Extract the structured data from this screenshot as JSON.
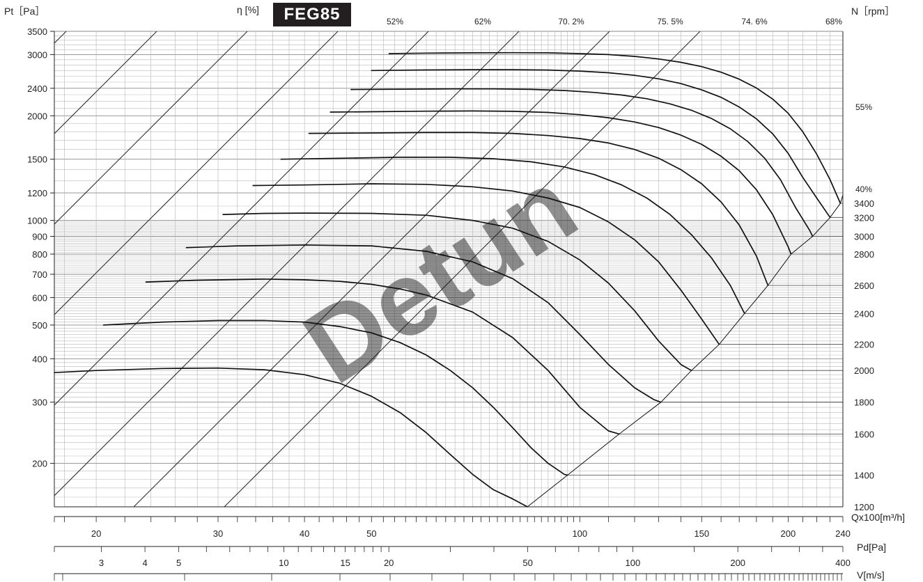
{
  "header": {
    "pt_label": "Pt［Pa］",
    "eta_label": "η [%]",
    "model": "FEG85",
    "n_label": "N［rpm］",
    "q_label": "Qx100[m³/h]",
    "pd_label": "Pd[Pa]",
    "v_label": "V[m/s]"
  },
  "watermark": "Detun",
  "chart_data": {
    "type": "line",
    "title": "FEG85",
    "xlabel": "Qx100[m³/h]",
    "ylabel": "Pt［Pa］",
    "x_scale": "log",
    "y_scale": "log",
    "xlim": [
      17.4,
      240
    ],
    "ylim": [
      150,
      3500
    ],
    "grid": true,
    "y_ticks": [
      200,
      300,
      400,
      500,
      600,
      700,
      800,
      900,
      1000,
      1200,
      1500,
      2000,
      2400,
      3000,
      3500
    ],
    "y_tick_labels": [
      "200",
      "300",
      "400",
      "500",
      "600",
      "700",
      "800",
      "900",
      "1000",
      "1200",
      "1500",
      "2000",
      "2400",
      "3000",
      "3500"
    ],
    "x_ticks": [
      20,
      30,
      40,
      50,
      100,
      150,
      200,
      240
    ],
    "x_tick_labels": [
      "20",
      "30",
      "40",
      "50",
      "100",
      "150",
      "200",
      "240"
    ],
    "pd_ticks": [
      3,
      4,
      5,
      10,
      15,
      20,
      50,
      100,
      200,
      400
    ],
    "pd_tick_labels": [
      "3",
      "4",
      "5",
      "10",
      "15",
      "20",
      "50",
      "100",
      "200",
      "400"
    ],
    "efficiency_labels": [
      "52%",
      "62%",
      "70. 2%",
      "75. 5%",
      "74. 6%",
      "68%",
      "55%",
      "40%"
    ],
    "rpm_ticks": [
      1200,
      1400,
      1600,
      1800,
      2000,
      2200,
      2400,
      2600,
      2800,
      3000,
      3200,
      3400
    ],
    "rpm_tick_labels": [
      "1200",
      "1400",
      "1600",
      "1800",
      "2000",
      "2200",
      "2400",
      "2600",
      "2800",
      "3000",
      "3200",
      "3400"
    ],
    "series": [
      {
        "name": "1200",
        "x": [
          17.4,
          20,
          25,
          30,
          35,
          40,
          45,
          50,
          55,
          60,
          65,
          70,
          75,
          80,
          84
        ],
        "y": [
          365,
          370,
          375,
          376,
          372,
          360,
          340,
          312,
          280,
          245,
          212,
          186,
          168,
          158,
          150
        ]
      },
      {
        "name": "1400",
        "x": [
          20.5,
          25,
          30,
          35,
          40,
          45,
          50,
          55,
          60,
          65,
          70,
          75,
          80,
          85,
          90,
          95,
          96
        ],
        "y": [
          500,
          510,
          515,
          515,
          510,
          495,
          475,
          445,
          410,
          370,
          330,
          290,
          253,
          222,
          200,
          186,
          185
        ]
      },
      {
        "name": "1600",
        "x": [
          23.6,
          28,
          35,
          40,
          45,
          50,
          55,
          60,
          70,
          80,
          90,
          100,
          110,
          114
        ],
        "y": [
          665,
          673,
          678,
          675,
          668,
          655,
          635,
          610,
          545,
          460,
          370,
          290,
          248,
          243
        ]
      },
      {
        "name": "1800",
        "x": [
          27,
          32,
          40,
          50,
          60,
          70,
          80,
          90,
          100,
          110,
          120,
          128,
          131
        ],
        "y": [
          835,
          845,
          850,
          845,
          815,
          760,
          680,
          580,
          470,
          385,
          330,
          305,
          300
        ]
      },
      {
        "name": "2000",
        "x": [
          30.5,
          35,
          40,
          50,
          60,
          70,
          80,
          90,
          100,
          110,
          120,
          130,
          140,
          145
        ],
        "y": [
          1040,
          1048,
          1050,
          1048,
          1035,
          1000,
          950,
          870,
          770,
          660,
          550,
          450,
          385,
          370
        ]
      },
      {
        "name": "2200",
        "x": [
          33.7,
          40,
          50,
          60,
          70,
          80,
          90,
          100,
          110,
          120,
          130,
          140,
          150,
          159
        ],
        "y": [
          1260,
          1265,
          1275,
          1270,
          1250,
          1215,
          1160,
          1090,
          990,
          880,
          760,
          630,
          520,
          440
        ]
      },
      {
        "name": "2400",
        "x": [
          37,
          45,
          55,
          65,
          75,
          85,
          95,
          105,
          115,
          125,
          135,
          145,
          155,
          165,
          173
        ],
        "y": [
          1500,
          1510,
          1520,
          1520,
          1505,
          1475,
          1425,
          1355,
          1265,
          1160,
          1040,
          910,
          780,
          650,
          540
        ]
      },
      {
        "name": "2600",
        "x": [
          40.6,
          50,
          60,
          70,
          80,
          90,
          100,
          110,
          120,
          130,
          140,
          150,
          160,
          170,
          180,
          187
        ],
        "y": [
          1780,
          1785,
          1790,
          1790,
          1780,
          1755,
          1720,
          1670,
          1600,
          1510,
          1400,
          1275,
          1130,
          970,
          790,
          650
        ]
      },
      {
        "name": "2800",
        "x": [
          43.6,
          50,
          60,
          70,
          80,
          90,
          100,
          110,
          120,
          130,
          140,
          150,
          160,
          170,
          180,
          190,
          200,
          202
        ],
        "y": [
          2050,
          2055,
          2062,
          2065,
          2060,
          2045,
          2015,
          1975,
          1920,
          1850,
          1760,
          1655,
          1530,
          1390,
          1225,
          1040,
          840,
          800
        ]
      },
      {
        "name": "3000",
        "x": [
          46.7,
          55,
          65,
          75,
          85,
          95,
          105,
          115,
          125,
          135,
          145,
          155,
          165,
          175,
          185,
          195,
          205,
          215,
          217
        ],
        "y": [
          2380,
          2385,
          2390,
          2390,
          2382,
          2365,
          2335,
          2295,
          2240,
          2165,
          2075,
          1965,
          1835,
          1685,
          1510,
          1310,
          1090,
          935,
          900
        ]
      },
      {
        "name": "3200",
        "x": [
          50,
          60,
          70,
          80,
          90,
          100,
          110,
          120,
          130,
          140,
          150,
          160,
          170,
          180,
          190,
          200,
          210,
          220,
          230
        ],
        "y": [
          2700,
          2710,
          2715,
          2715,
          2708,
          2690,
          2660,
          2615,
          2555,
          2475,
          2375,
          2260,
          2120,
          1960,
          1775,
          1560,
          1330,
          1160,
          1020
        ]
      },
      {
        "name": "3400",
        "x": [
          53,
          60,
          70,
          80,
          90,
          100,
          110,
          120,
          130,
          140,
          150,
          160,
          170,
          180,
          190,
          200,
          210,
          220,
          230,
          238
        ],
        "y": [
          3020,
          3030,
          3035,
          3038,
          3035,
          3020,
          3000,
          2965,
          2915,
          2850,
          2770,
          2670,
          2550,
          2405,
          2235,
          2035,
          1800,
          1550,
          1310,
          1120
        ]
      }
    ]
  }
}
